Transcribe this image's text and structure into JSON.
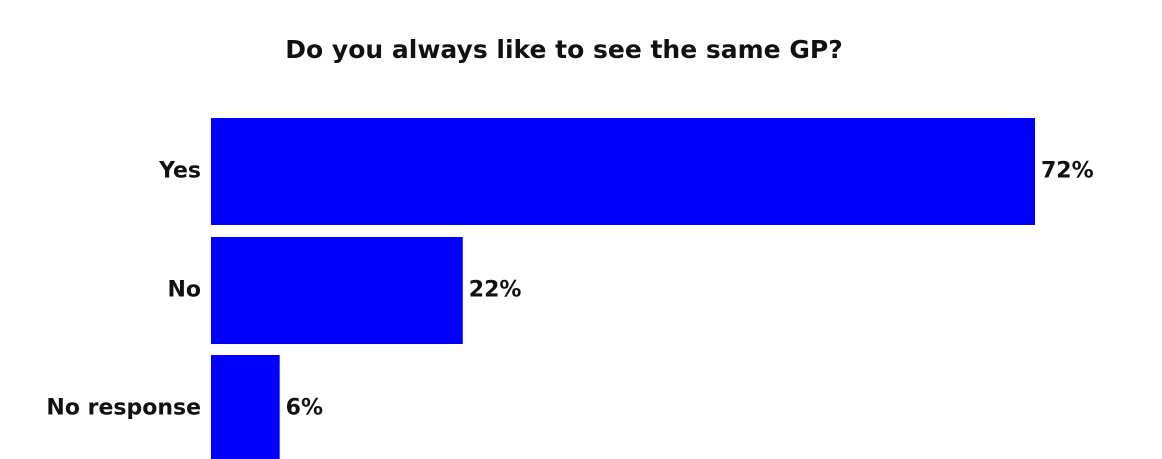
{
  "chart_data": {
    "type": "bar",
    "orientation": "horizontal",
    "title": "Do you always like to see the same GP?",
    "categories": [
      "Yes",
      "No",
      "No response"
    ],
    "values": [
      72,
      22,
      6
    ],
    "value_labels": [
      "72%",
      "22%",
      "6%"
    ],
    "unit": "%",
    "xlim": [
      0,
      72
    ],
    "grid": false,
    "legend": "none",
    "bar_color": "#0000ff"
  }
}
